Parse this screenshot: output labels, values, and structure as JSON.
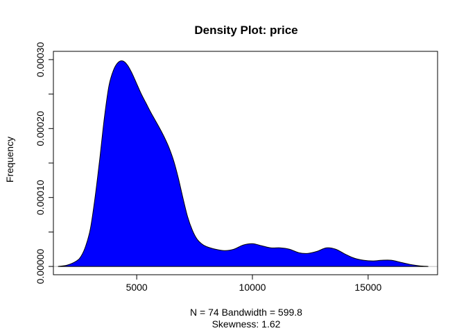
{
  "chart_data": {
    "type": "area",
    "title": "Density Plot: price",
    "xlabel_line1": "N = 74   Bandwidth = 599.8",
    "xlabel_line2": "Skewness: 1.62",
    "ylabel": "Frequency",
    "xlim": [
      1400,
      18000
    ],
    "ylim": [
      -1.2e-05,
      0.000312
    ],
    "x_ticks": [
      5000,
      10000,
      15000
    ],
    "x_tick_labels": [
      "5000",
      "10000",
      "15000"
    ],
    "y_ticks": [
      0,
      5e-05,
      0.0001,
      0.00015,
      0.0002,
      0.00025,
      0.0003
    ],
    "y_tick_labels": [
      "0.00000",
      "",
      "0.00010",
      "",
      "0.00020",
      "",
      "0.00030"
    ],
    "baseline": 0,
    "grid": false,
    "fill_color": "#0000ff",
    "line_color": "#000000",
    "baseline_color": "#bebebe",
    "series": [
      {
        "x": [
          1600,
          2000,
          2400,
          2600,
          2800,
          3000,
          3200,
          3400,
          3600,
          3800,
          4000,
          4200,
          4400,
          4600,
          4800,
          5000,
          5200,
          5400,
          5600,
          5800,
          6000,
          6200,
          6400,
          6600,
          6800,
          7000,
          7200,
          7400,
          7600,
          7800,
          8000,
          8400,
          8800,
          9200,
          9600,
          10000,
          10400,
          10800,
          11200,
          11600,
          12000,
          12400,
          12800,
          13200,
          13600,
          14000,
          14400,
          14800,
          15200,
          15600,
          16000,
          16400,
          16800,
          17200,
          17600
        ],
        "y": [
          0,
          2e-06,
          8e-06,
          1.5e-05,
          3e-05,
          5.5e-05,
          0.0001,
          0.000155,
          0.000215,
          0.000262,
          0.000285,
          0.000296,
          0.000298,
          0.000292,
          0.00028,
          0.000265,
          0.00025,
          0.000237,
          0.000224,
          0.000212,
          0.0002,
          0.000187,
          0.000172,
          0.000153,
          0.000128,
          9.9e-05,
          7.2e-05,
          5.3e-05,
          4e-05,
          3.3e-05,
          2.9e-05,
          2.5e-05,
          2.3e-05,
          2.5e-05,
          3.1e-05,
          3.3e-05,
          3e-05,
          2.7e-05,
          2.7e-05,
          2.5e-05,
          2e-05,
          1.9e-05,
          2.2e-05,
          2.7e-05,
          2.5e-05,
          1.8e-05,
          1.2e-05,
          9e-06,
          8e-06,
          9e-06,
          9e-06,
          6e-06,
          3e-06,
          1e-06,
          0
        ]
      }
    ]
  }
}
